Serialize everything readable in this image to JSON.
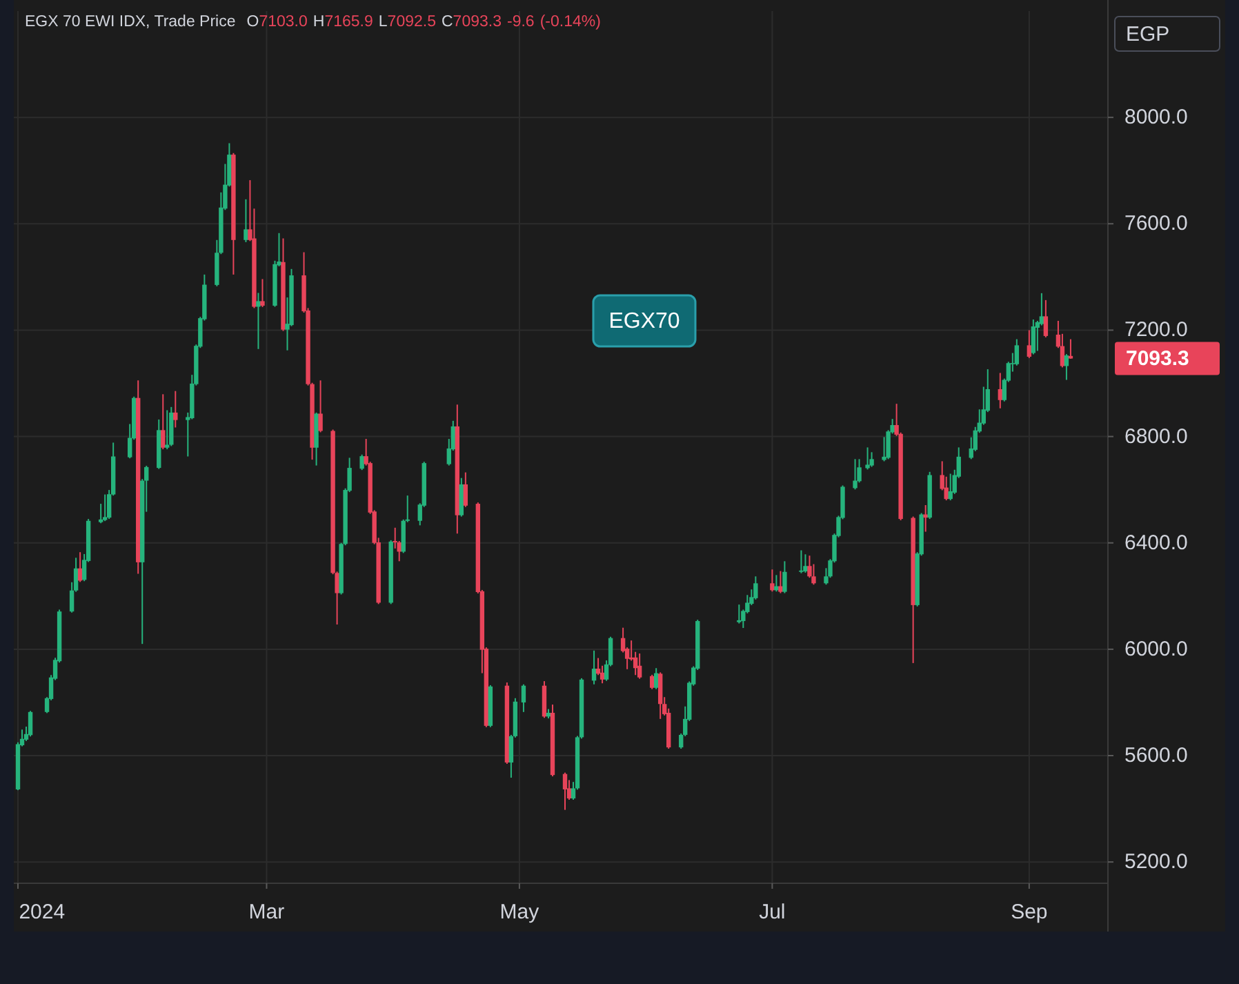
{
  "chart_data": {
    "type": "candlestick",
    "title": "EGX 70 EWI IDX, Trade Price",
    "annotations": [
      "O7103.0 H7165.9 L7092.5 C7093.3 -9.6 (-0.14%)",
      "EGP",
      "EGX70",
      {
        "text": "7093.3",
        "x": "2024-09-11",
        "y": 7093.3
      }
    ],
    "colors": [
      "#26b47d",
      "#26b47d",
      "#26b47d",
      "#26b47d",
      "#26b47d",
      "#26b47d",
      "#26b47d",
      "#26b47d",
      "#26b47d",
      "#26b47d",
      "#e8445a",
      "#26b47d",
      "#26b47d",
      "#26b47d",
      "#26b47d",
      "#26b47d",
      "#26b47d",
      "#26b47d",
      "#26b47d",
      "#e8445a",
      "#26b47d",
      "#26b47d",
      "#26b47d",
      "#e8445a",
      "#26b47d",
      "#26b47d",
      "#e8445a",
      "#26b47d",
      "#26b47d",
      "#26b47d",
      "#26b47d",
      "#26b47d",
      "#26b47d",
      "#26b47d",
      "#26b47d",
      "#26b47d",
      "#e8445a",
      "#26b47d",
      "#e8445a",
      "#e8445a",
      "#26b47d",
      "#e8445a",
      "#26b47d",
      "#26b47d",
      "#e8445a",
      "#26b47d",
      "#26b47d",
      "#e8445a",
      "#e8445a",
      "#e8445a",
      "#26b47d",
      "#e8445a",
      "#e8445a",
      "#e8445a",
      "#26b47d",
      "#26b47d",
      "#26b47d",
      "#26b47d",
      "#e8445a",
      "#e8445a",
      "#e8445a",
      "#e8445a",
      "#26b47d",
      "#e8445a",
      "#e8445a",
      "#26b47d",
      "#26b47d",
      "#26b47d",
      "#26b47d",
      "#26b47d",
      "#26b47d",
      "#e8445a",
      "#26b47d",
      "#e8445a",
      "#e8445a",
      "#e8445a",
      "#e8445a",
      "#26b47d",
      "#e8445a",
      "#26b47d",
      "#26b47d",
      "#26b47d",
      "#e8445a",
      "#26b47d",
      "#e8445a",
      "#e8445a",
      "#e8445a",
      "#26b47d",
      "#26b47d",
      "#26b47d",
      "#26b47d",
      "#e8445a",
      "#e8445a",
      "#26b47d",
      "#26b47d",
      "#e8445a",
      "#e8445a",
      "#e8445a",
      "#e8445a",
      "#e8445a",
      "#e8445a",
      "#26b47d",
      "#e8445a",
      "#e8445a",
      "#e8445a",
      "#26b47d",
      "#26b47d",
      "#26b47d",
      "#26b47d",
      "#26b47d",
      "#26b47d",
      "#26b47d",
      "#26b47d",
      "#26b47d",
      "#26b47d",
      "#e8445a",
      "#26b47d",
      "#e8445a",
      "#26b47d",
      "#26b47d",
      "#26b47d",
      "#e8445a",
      "#e8445a",
      "#26b47d",
      "#26b47d",
      "#26b47d",
      "#26b47d",
      "#26b47d",
      "#26b47d",
      "#26b47d",
      "#26b47d",
      "#26b47d",
      "#26b47d",
      "#26b47d",
      "#26b47d",
      "#e8445a",
      "#e8445a",
      "#e8445a",
      "#26b47d",
      "#26b47d",
      "#e8445a",
      "#26b47d",
      "#e8445a",
      "#e8445a",
      "#26b47d",
      "#26b47d",
      "#26b47d",
      "#26b47d",
      "#26b47d",
      "#26b47d",
      "#26b47d",
      "#26b47d",
      "#e8445a",
      "#26b47d",
      "#26b47d",
      "#26b47d",
      "#26b47d",
      "#e8445a",
      "#26b47d",
      "#26b47d",
      "#26b47d",
      "#e8445a",
      "#e8445a",
      "#e8445a",
      "#26b47d",
      "#e8445a"
    ],
    "grid": true,
    "ylim": [
      5120,
      8400
    ],
    "yticks": [
      {
        "value": 5200,
        "label": "5200.0"
      },
      {
        "value": 5600,
        "label": "5600.0"
      },
      {
        "value": 6000,
        "label": "6000.0"
      },
      {
        "value": 6400,
        "label": "6400.0"
      },
      {
        "value": 6800,
        "label": "6800.0"
      },
      {
        "value": 7200,
        "label": "7200.0"
      },
      {
        "value": 7600,
        "label": "7600.0"
      },
      {
        "value": 8000,
        "label": "8000.0"
      }
    ],
    "xlim": [
      "2023-12-31",
      "2024-09-20"
    ],
    "xticks": [
      {
        "value": "2024-01-01",
        "label": "2024"
      },
      {
        "value": "2024-03-01",
        "label": "Mar"
      },
      {
        "value": "2024-05-01",
        "label": "May"
      },
      {
        "value": "2024-07-01",
        "label": "Jul"
      },
      {
        "value": "2024-09-01",
        "label": "Sep"
      }
    ],
    "x": [
      "2024-01-01",
      "2024-01-02",
      "2024-01-03",
      "2024-01-04",
      "2024-01-08",
      "2024-01-09",
      "2024-01-10",
      "2024-01-11",
      "2024-01-14",
      "2024-01-15",
      "2024-01-16",
      "2024-01-17",
      "2024-01-18",
      "2024-01-21",
      "2024-01-22",
      "2024-01-23",
      "2024-01-24",
      "2024-01-28",
      "2024-01-29",
      "2024-01-30",
      "2024-01-31",
      "2024-02-01",
      "2024-02-04",
      "2024-02-05",
      "2024-02-06",
      "2024-02-07",
      "2024-02-08",
      "2024-02-11",
      "2024-02-12",
      "2024-02-13",
      "2024-02-14",
      "2024-02-15",
      "2024-02-18",
      "2024-02-19",
      "2024-02-20",
      "2024-02-21",
      "2024-02-22",
      "2024-02-25",
      "2024-02-26",
      "2024-02-27",
      "2024-02-28",
      "2024-02-29",
      "2024-03-03",
      "2024-03-04",
      "2024-03-05",
      "2024-03-06",
      "2024-03-07",
      "2024-03-10",
      "2024-03-11",
      "2024-03-12",
      "2024-03-13",
      "2024-03-14",
      "2024-03-17",
      "2024-03-18",
      "2024-03-19",
      "2024-03-20",
      "2024-03-21",
      "2024-03-24",
      "2024-03-25",
      "2024-03-26",
      "2024-03-27",
      "2024-03-28",
      "2024-03-31",
      "2024-04-01",
      "2024-04-02",
      "2024-04-03",
      "2024-04-04",
      "2024-04-07",
      "2024-04-08",
      "2024-04-14",
      "2024-04-15",
      "2024-04-16",
      "2024-04-17",
      "2024-04-18",
      "2024-04-21",
      "2024-04-22",
      "2024-04-23",
      "2024-04-24",
      "2024-04-28",
      "2024-04-29",
      "2024-04-30",
      "2024-05-02",
      "2024-05-07",
      "2024-05-08",
      "2024-05-09",
      "2024-05-12",
      "2024-05-13",
      "2024-05-14",
      "2024-05-15",
      "2024-05-16",
      "2024-05-19",
      "2024-05-20",
      "2024-05-21",
      "2024-05-22",
      "2024-05-23",
      "2024-05-26",
      "2024-05-27",
      "2024-05-28",
      "2024-05-29",
      "2024-05-30",
      "2024-06-02",
      "2024-06-03",
      "2024-06-04",
      "2024-06-05",
      "2024-06-06",
      "2024-06-09",
      "2024-06-10",
      "2024-06-11",
      "2024-06-12",
      "2024-06-13",
      "2024-06-23",
      "2024-06-24",
      "2024-06-25",
      "2024-06-26",
      "2024-06-27",
      "2024-07-01",
      "2024-07-02",
      "2024-07-03",
      "2024-07-04",
      "2024-07-08",
      "2024-07-09",
      "2024-07-10",
      "2024-07-11",
      "2024-07-14",
      "2024-07-15",
      "2024-07-16",
      "2024-07-17",
      "2024-07-18",
      "2024-07-21",
      "2024-07-22",
      "2024-07-24",
      "2024-07-25",
      "2024-07-28",
      "2024-07-29",
      "2024-07-30",
      "2024-07-31",
      "2024-08-01",
      "2024-08-04",
      "2024-08-05",
      "2024-08-06",
      "2024-08-07",
      "2024-08-08",
      "2024-08-11",
      "2024-08-12",
      "2024-08-13",
      "2024-08-14",
      "2024-08-15",
      "2024-08-18",
      "2024-08-19",
      "2024-08-20",
      "2024-08-21",
      "2024-08-22",
      "2024-08-25",
      "2024-08-26",
      "2024-08-27",
      "2024-08-28",
      "2024-08-29",
      "2024-09-01",
      "2024-09-02",
      "2024-09-03",
      "2024-09-04",
      "2024-09-05",
      "2024-09-08",
      "2024-09-09",
      "2024-09-10",
      "2024-09-11"
    ],
    "ohlc": [
      [
        5473,
        5650,
        5470,
        5643
      ],
      [
        5639,
        5698,
        5635,
        5663
      ],
      [
        5660,
        5709,
        5655,
        5681
      ],
      [
        5677,
        5768,
        5672,
        5764
      ],
      [
        5764,
        5820,
        5760,
        5816
      ],
      [
        5813,
        5903,
        5808,
        5894
      ],
      [
        5889,
        5968,
        5884,
        5960
      ],
      [
        5955,
        6149,
        5950,
        6142
      ],
      [
        6142,
        6252,
        6138,
        6221
      ],
      [
        6221,
        6344,
        6216,
        6304
      ],
      [
        6304,
        6365,
        6253,
        6258
      ],
      [
        6261,
        6358,
        6256,
        6336
      ],
      [
        6332,
        6490,
        6328,
        6483
      ],
      [
        6478,
        6547,
        6474,
        6488
      ],
      [
        6486,
        6582,
        6482,
        6497
      ],
      [
        6495,
        6599,
        6490,
        6583
      ],
      [
        6582,
        6777,
        6578,
        6725
      ],
      [
        6722,
        6847,
        6718,
        6795
      ],
      [
        6793,
        6950,
        6788,
        6945
      ],
      [
        6945,
        7011,
        6284,
        6327
      ],
      [
        6327,
        6640,
        6020,
        6634
      ],
      [
        6634,
        6690,
        6517,
        6685
      ],
      [
        6682,
        6864,
        6678,
        6824
      ],
      [
        6824,
        6959,
        6752,
        6758
      ],
      [
        6758,
        6899,
        6752,
        6769
      ],
      [
        6769,
        6911,
        6764,
        6890
      ],
      [
        6890,
        6971,
        6834,
        6862
      ],
      [
        6862,
        6890,
        6725,
        6873
      ],
      [
        6869,
        7032,
        6865,
        6999
      ],
      [
        6997,
        7146,
        6992,
        7141
      ],
      [
        7138,
        7250,
        7133,
        7245
      ],
      [
        7241,
        7409,
        7236,
        7371
      ],
      [
        7370,
        7539,
        7365,
        7491
      ],
      [
        7491,
        7718,
        7486,
        7661
      ],
      [
        7657,
        7825,
        7652,
        7747
      ],
      [
        7744,
        7903,
        7740,
        7860
      ],
      [
        7860,
        7866,
        7409,
        7539
      ],
      [
        7539,
        7692,
        7531,
        7579
      ],
      [
        7579,
        7764,
        7535,
        7539
      ],
      [
        7545,
        7657,
        7283,
        7288
      ],
      [
        7288,
        7340,
        7129,
        7309
      ],
      [
        7309,
        7392,
        7287,
        7292
      ],
      [
        7292,
        7461,
        7288,
        7448
      ],
      [
        7444,
        7565,
        7440,
        7458
      ],
      [
        7456,
        7545,
        7197,
        7202
      ],
      [
        7202,
        7323,
        7124,
        7224
      ],
      [
        7219,
        7430,
        7215,
        7406
      ],
      [
        7406,
        7493,
        7266,
        7271
      ],
      [
        7274,
        7283,
        6992,
        6997
      ],
      [
        6997,
        7002,
        6713,
        6758
      ],
      [
        6758,
        6890,
        6691,
        6886
      ],
      [
        6886,
        7011,
        6816,
        6821
      ],
      [
        6821,
        6826,
        6282,
        6287
      ],
      [
        6287,
        6292,
        6093,
        6211
      ],
      [
        6211,
        6400,
        6206,
        6396
      ],
      [
        6396,
        6605,
        6391,
        6599
      ],
      [
        6596,
        6720,
        6591,
        6682
      ],
      [
        6679,
        6732,
        6674,
        6726
      ],
      [
        6726,
        6791,
        6691,
        6696
      ],
      [
        6700,
        6705,
        6509,
        6514
      ],
      [
        6518,
        6523,
        6395,
        6400
      ],
      [
        6402,
        6419,
        6170,
        6175
      ],
      [
        6175,
        6410,
        6170,
        6405
      ],
      [
        6407,
        6457,
        6379,
        6402
      ],
      [
        6402,
        6407,
        6331,
        6367
      ],
      [
        6367,
        6488,
        6362,
        6483
      ],
      [
        6483,
        6578,
        6478,
        6488
      ],
      [
        6483,
        6549,
        6466,
        6544
      ],
      [
        6540,
        6705,
        6535,
        6700
      ],
      [
        6696,
        6791,
        6691,
        6755
      ],
      [
        6752,
        6859,
        6747,
        6838
      ],
      [
        6838,
        6920,
        6435,
        6504
      ],
      [
        6504,
        6644,
        6499,
        6620
      ],
      [
        6620,
        6665,
        6535,
        6540
      ],
      [
        6547,
        6552,
        6210,
        6215
      ],
      [
        6218,
        6223,
        5910,
        5998
      ],
      [
        6002,
        6007,
        5707,
        5712
      ],
      [
        5712,
        5865,
        5707,
        5860
      ],
      [
        5863,
        5875,
        5569,
        5574
      ],
      [
        5574,
        5678,
        5517,
        5673
      ],
      [
        5673,
        5816,
        5668,
        5803
      ],
      [
        5800,
        5868,
        5764,
        5863
      ],
      [
        5863,
        5880,
        5742,
        5747
      ],
      [
        5747,
        5775,
        5740,
        5761
      ],
      [
        5761,
        5792,
        5522,
        5527
      ],
      [
        5531,
        5536,
        5396,
        5473
      ],
      [
        5477,
        5508,
        5434,
        5439
      ],
      [
        5439,
        5501,
        5434,
        5477
      ],
      [
        5477,
        5674,
        5472,
        5669
      ],
      [
        5669,
        5891,
        5664,
        5886
      ],
      [
        5882,
        5995,
        5868,
        5927
      ],
      [
        5927,
        5967,
        5903,
        5908
      ],
      [
        5912,
        5938,
        5872,
        5886
      ],
      [
        5886,
        5958,
        5881,
        5943
      ],
      [
        5941,
        6047,
        5936,
        6042
      ],
      [
        6042,
        6081,
        5988,
        5993
      ],
      [
        6002,
        6007,
        5925,
        5964
      ],
      [
        5969,
        6033,
        5957,
        5962
      ],
      [
        5969,
        5990,
        5903,
        5929
      ],
      [
        5938,
        5984,
        5889,
        5894
      ],
      [
        5899,
        5904,
        5850,
        5855
      ],
      [
        5855,
        5929,
        5850,
        5910
      ],
      [
        5908,
        5913,
        5738,
        5794
      ],
      [
        5794,
        5820,
        5751,
        5756
      ],
      [
        5761,
        5777,
        5626,
        5631
      ],
      [
        5631,
        5683,
        5626,
        5678
      ],
      [
        5678,
        5785,
        5673,
        5738
      ],
      [
        5735,
        5879,
        5730,
        5874
      ],
      [
        5868,
        5936,
        5863,
        5931
      ],
      [
        5927,
        6111,
        5922,
        6106
      ],
      [
        6102,
        6168,
        6097,
        6109
      ],
      [
        6106,
        6149,
        6080,
        6144
      ],
      [
        6140,
        6204,
        6135,
        6175
      ],
      [
        6171,
        6225,
        6166,
        6196
      ],
      [
        6192,
        6274,
        6187,
        6248
      ],
      [
        6248,
        6300,
        6217,
        6222
      ],
      [
        6222,
        6279,
        6217,
        6237
      ],
      [
        6237,
        6294,
        6211,
        6216
      ],
      [
        6216,
        6331,
        6211,
        6291
      ],
      [
        6291,
        6372,
        6286,
        6296
      ],
      [
        6293,
        6357,
        6288,
        6313
      ],
      [
        6313,
        6352,
        6269,
        6274
      ],
      [
        6274,
        6320,
        6243,
        6248
      ],
      [
        6248,
        6305,
        6243,
        6274
      ],
      [
        6274,
        6339,
        6269,
        6334
      ],
      [
        6331,
        6435,
        6326,
        6430
      ],
      [
        6426,
        6502,
        6421,
        6497
      ],
      [
        6494,
        6616,
        6489,
        6611
      ],
      [
        6606,
        6715,
        6601,
        6634
      ],
      [
        6632,
        6715,
        6627,
        6684
      ],
      [
        6681,
        6759,
        6676,
        6694
      ],
      [
        6691,
        6741,
        6686,
        6715
      ],
      [
        6712,
        6798,
        6707,
        6724
      ],
      [
        6720,
        6824,
        6715,
        6819
      ],
      [
        6816,
        6866,
        6811,
        6843
      ],
      [
        6843,
        6923,
        6802,
        6807
      ],
      [
        6810,
        6815,
        6485,
        6490
      ],
      [
        6494,
        6499,
        5948,
        6166
      ],
      [
        6166,
        6365,
        6161,
        6360
      ],
      [
        6357,
        6512,
        6352,
        6507
      ],
      [
        6507,
        6542,
        6442,
        6495
      ],
      [
        6495,
        6667,
        6490,
        6655
      ],
      [
        6655,
        6707,
        6598,
        6603
      ],
      [
        6608,
        6649,
        6560,
        6565
      ],
      [
        6565,
        6660,
        6560,
        6594
      ],
      [
        6589,
        6675,
        6584,
        6655
      ],
      [
        6649,
        6759,
        6644,
        6724
      ],
      [
        6720,
        6797,
        6715,
        6755
      ],
      [
        6750,
        6836,
        6745,
        6823
      ],
      [
        6819,
        6902,
        6814,
        6852
      ],
      [
        6849,
        6987,
        6844,
        6902
      ],
      [
        6897,
        7053,
        6892,
        6978
      ],
      [
        6978,
        7039,
        6906,
        6937
      ],
      [
        6937,
        7018,
        6932,
        7013
      ],
      [
        7010,
        7081,
        7005,
        7076
      ],
      [
        7074,
        7114,
        7044,
        7076
      ],
      [
        7072,
        7166,
        7067,
        7143
      ],
      [
        7143,
        7200,
        7095,
        7100
      ],
      [
        7114,
        7240,
        7109,
        7214
      ],
      [
        7209,
        7235,
        7122,
        7230
      ],
      [
        7223,
        7339,
        7218,
        7252
      ],
      [
        7252,
        7313,
        7173,
        7178
      ],
      [
        7183,
        7235,
        7133,
        7138
      ],
      [
        7140,
        7186,
        7060,
        7065
      ],
      [
        7065,
        7110,
        7013,
        7105
      ],
      [
        7103.0,
        7165.9,
        7092.5,
        7093.3
      ]
    ]
  }
}
